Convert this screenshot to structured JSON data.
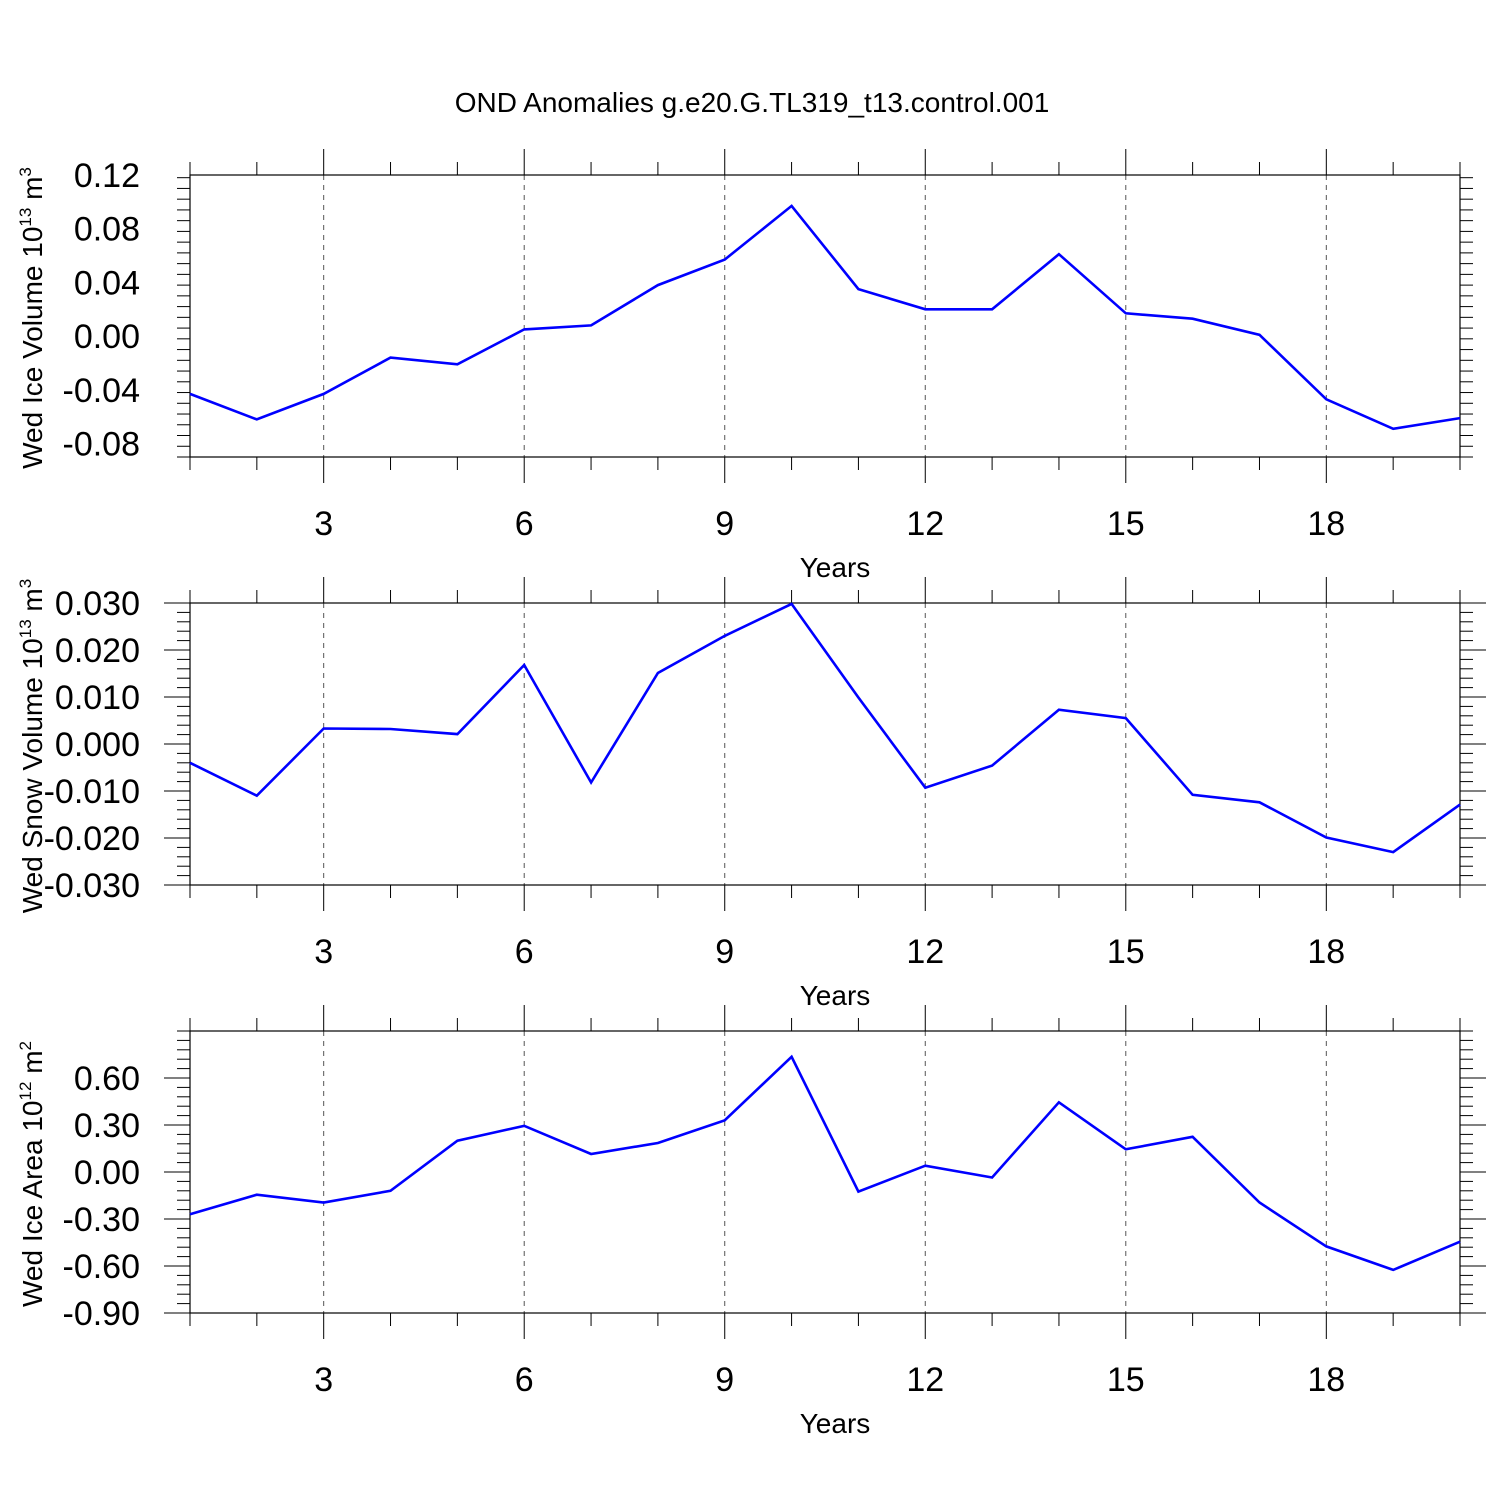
{
  "figure": {
    "title": "OND Anomalies g.e20.G.TL319_t13.control.001",
    "line_color": "#0000ff",
    "axis_color": "#000000",
    "grid_color": "#555555"
  },
  "chart_data": [
    {
      "type": "line",
      "title": "OND Anomalies g.e20.G.TL319_t13.control.001",
      "xlabel": "Years",
      "ylabel": {
        "main": "Wed Ice Volume 10",
        "exp": "13",
        "unit": " m",
        "unit_exp": "3"
      },
      "xlim": [
        1,
        20
      ],
      "ylim": [
        -0.09,
        0.12
      ],
      "x_ticks": [
        3,
        6,
        9,
        12,
        15,
        18
      ],
      "x_tick_labels": [
        "3",
        "6",
        "9",
        "12",
        "15",
        "18"
      ],
      "y_ticks": [
        -0.08,
        -0.04,
        0.0,
        0.04,
        0.08,
        0.12
      ],
      "y_tick_labels": [
        "-0.08",
        "-0.04",
        "0.00",
        "0.04",
        "0.08",
        "0.12"
      ],
      "grid": "vertical dashed at major x ticks",
      "series": [
        {
          "x": [
            1,
            2,
            3,
            4,
            5,
            6,
            7,
            8,
            9,
            10,
            11,
            12,
            13,
            14,
            15,
            16,
            17,
            18,
            19,
            20
          ],
          "values": [
            -0.043,
            -0.062,
            -0.043,
            -0.016,
            -0.021,
            0.005,
            0.008,
            0.038,
            0.057,
            0.097,
            0.035,
            0.02,
            0.02,
            0.061,
            0.017,
            0.013,
            0.001,
            -0.047,
            -0.069,
            -0.061
          ]
        }
      ]
    },
    {
      "type": "line",
      "xlabel": "Years",
      "ylabel": {
        "main": "Wed Snow Volume 10",
        "exp": "13",
        "unit": " m",
        "unit_exp": "3"
      },
      "xlim": [
        1,
        20
      ],
      "ylim": [
        -0.03,
        0.03
      ],
      "x_ticks": [
        3,
        6,
        9,
        12,
        15,
        18
      ],
      "x_tick_labels": [
        "3",
        "6",
        "9",
        "12",
        "15",
        "18"
      ],
      "y_ticks": [
        -0.03,
        -0.02,
        -0.01,
        0.0,
        0.01,
        0.02,
        0.03
      ],
      "y_tick_labels": [
        "-0.030",
        "-0.020",
        "-0.010",
        "0.000",
        "0.010",
        "0.020",
        "0.030"
      ],
      "grid": "vertical dashed at major x ticks",
      "series": [
        {
          "x": [
            1,
            2,
            3,
            4,
            5,
            6,
            7,
            8,
            9,
            10,
            11,
            12,
            13,
            14,
            15,
            16,
            17,
            18,
            19,
            20
          ],
          "values": [
            -0.004,
            -0.011,
            0.0033,
            0.0032,
            0.0021,
            0.0168,
            -0.0082,
            0.0151,
            0.023,
            0.0298,
            0.0099,
            -0.0093,
            -0.0046,
            0.0073,
            0.0055,
            -0.0108,
            -0.0124,
            -0.0199,
            -0.023,
            -0.0129
          ]
        }
      ]
    },
    {
      "type": "line",
      "xlabel": "Years",
      "ylabel": {
        "main": "Wed Ice Area 10",
        "exp": "12",
        "unit": " m",
        "unit_exp": "2"
      },
      "xlim": [
        1,
        20
      ],
      "ylim": [
        -0.9,
        0.9
      ],
      "x_ticks": [
        3,
        6,
        9,
        12,
        15,
        18
      ],
      "x_tick_labels": [
        "3",
        "6",
        "9",
        "12",
        "15",
        "18"
      ],
      "y_ticks": [
        -0.9,
        -0.6,
        -0.3,
        0.0,
        0.3,
        0.6
      ],
      "y_tick_labels": [
        "-0.90",
        "-0.60",
        "-0.30",
        "0.00",
        "0.30",
        "0.60"
      ],
      "grid": "vertical dashed at major x ticks",
      "series": [
        {
          "x": [
            1,
            2,
            3,
            4,
            5,
            6,
            7,
            8,
            9,
            10,
            11,
            12,
            13,
            14,
            15,
            16,
            17,
            18,
            19,
            20
          ],
          "values": [
            -0.27,
            -0.145,
            -0.195,
            -0.12,
            0.2,
            0.295,
            0.115,
            0.185,
            0.33,
            0.735,
            -0.125,
            0.04,
            -0.035,
            0.445,
            0.145,
            0.225,
            -0.195,
            -0.475,
            -0.625,
            -0.445
          ]
        }
      ]
    }
  ]
}
